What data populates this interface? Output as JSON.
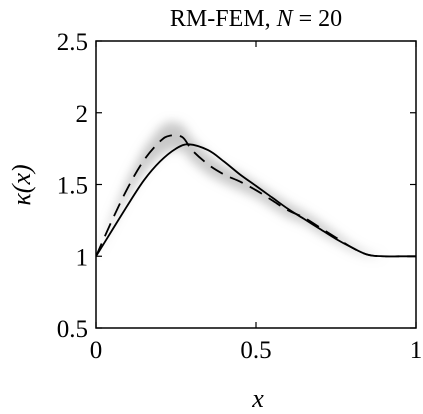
{
  "chart_data": {
    "type": "line",
    "title": "RM-FEM, N = 20",
    "title_parts": {
      "method": "RM-FEM, ",
      "var": "N",
      "rest": " = 20"
    },
    "xlabel": "x",
    "ylabel": "κ(x)",
    "xlim": [
      0,
      1
    ],
    "ylim": [
      0.5,
      2.5
    ],
    "xticks": [
      0,
      0.5,
      1
    ],
    "xtick_labels": [
      "0",
      "0.5",
      "1"
    ],
    "yticks": [
      0.5,
      1,
      1.5,
      2,
      2.5
    ],
    "ytick_labels": [
      "0.5",
      "1",
      "1.5",
      "2",
      "2.5"
    ],
    "grid": false,
    "series": [
      {
        "style": "solid",
        "color": "#000000",
        "x": [
          0,
          0.05,
          0.1,
          0.15,
          0.2,
          0.25,
          0.29,
          0.35,
          0.4,
          0.45,
          0.5,
          0.55,
          0.6,
          0.65,
          0.7,
          0.75,
          0.8,
          0.85,
          0.9,
          0.95,
          1.0
        ],
        "y": [
          1.0,
          1.18,
          1.36,
          1.53,
          1.66,
          1.75,
          1.78,
          1.74,
          1.66,
          1.57,
          1.49,
          1.41,
          1.33,
          1.26,
          1.19,
          1.12,
          1.06,
          1.01,
          1.0,
          1.0,
          1.0
        ]
      },
      {
        "style": "dashed",
        "color": "#000000",
        "x": [
          0,
          0.05,
          0.1,
          0.15,
          0.2,
          0.23,
          0.27,
          0.3,
          0.35,
          0.4,
          0.45,
          0.5,
          0.55,
          0.6,
          0.65,
          0.7,
          0.75,
          0.8,
          0.85,
          0.9,
          0.95,
          1.0
        ],
        "y": [
          1.0,
          1.25,
          1.48,
          1.67,
          1.8,
          1.84,
          1.83,
          1.74,
          1.64,
          1.57,
          1.52,
          1.46,
          1.39,
          1.32,
          1.27,
          1.2,
          1.13,
          1.06,
          1.01,
          1.0,
          1.0,
          1.0
        ]
      }
    ],
    "uncertainty_band": {
      "color": "#9a9a9a",
      "x": [
        0,
        0.05,
        0.1,
        0.15,
        0.2,
        0.23,
        0.27,
        0.3,
        0.35,
        0.4,
        0.45,
        0.5,
        0.55,
        0.6,
        0.65,
        0.7,
        0.75,
        0.8,
        0.85,
        0.9,
        0.95,
        1.0
      ],
      "spread": [
        0.0,
        0.03,
        0.06,
        0.08,
        0.1,
        0.1,
        0.09,
        0.08,
        0.07,
        0.06,
        0.06,
        0.05,
        0.05,
        0.05,
        0.04,
        0.04,
        0.03,
        0.02,
        0.01,
        0.0,
        0.0,
        0.0
      ]
    }
  }
}
